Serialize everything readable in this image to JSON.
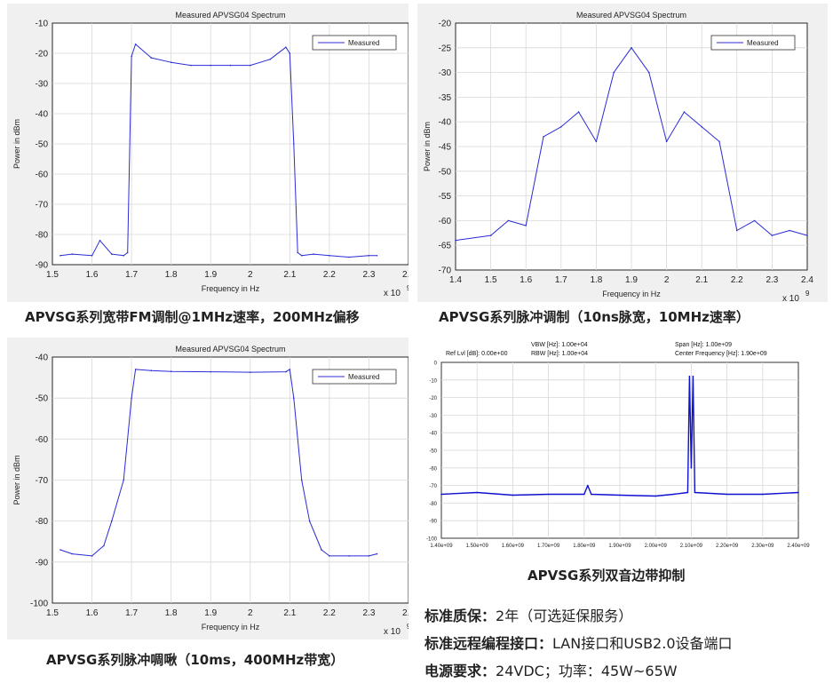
{
  "chart_data": [
    {
      "type": "line",
      "title": "Measured APVSG04 Spectrum",
      "xlabel": "Frequency in Hz",
      "ylabel": "Power in dBm",
      "x_exponent": "x 10",
      "x_exponent_power": "9",
      "xlim": [
        1.5,
        2.4
      ],
      "ylim": [
        -90,
        -10
      ],
      "x_ticks": [
        "1.5",
        "1.6",
        "1.7",
        "1.8",
        "1.9",
        "2",
        "2.1",
        "2.2",
        "2.3",
        "2.4"
      ],
      "y_ticks": [
        "-10",
        "-20",
        "-30",
        "-40",
        "-50",
        "-60",
        "-70",
        "-80",
        "-90"
      ],
      "grid": true,
      "legend_position": "top-right",
      "color": "#2b2bd6",
      "series": [
        {
          "name": "Measured",
          "x": [
            1.52,
            1.55,
            1.6,
            1.62,
            1.65,
            1.68,
            1.69,
            1.7,
            1.71,
            1.75,
            1.8,
            1.85,
            1.9,
            1.95,
            2.0,
            2.05,
            2.09,
            2.1,
            2.11,
            2.12,
            2.13,
            2.16,
            2.2,
            2.25,
            2.3,
            2.32
          ],
          "y": [
            -87,
            -86.5,
            -87,
            -82,
            -86.5,
            -87,
            -86,
            -21,
            -17,
            -21.5,
            -23,
            -24,
            -24,
            -24,
            -24,
            -22,
            -18,
            -20,
            -50,
            -86,
            -87,
            -86.5,
            -87,
            -87.5,
            -87,
            -87
          ]
        }
      ]
    },
    {
      "type": "line",
      "title": "Measured APVSG04 Spectrum",
      "xlabel": "Frequency in Hz",
      "ylabel": "Power in dBm",
      "x_exponent": "x 10",
      "x_exponent_power": "9",
      "xlim": [
        1.4,
        2.4
      ],
      "ylim": [
        -70,
        -20
      ],
      "x_ticks": [
        "1.4",
        "1.5",
        "1.6",
        "1.7",
        "1.8",
        "1.9",
        "2",
        "2.1",
        "2.2",
        "2.3",
        "2.4"
      ],
      "y_ticks": [
        "-20",
        "-25",
        "-30",
        "-35",
        "-40",
        "-45",
        "-50",
        "-55",
        "-60",
        "-65",
        "-70"
      ],
      "grid": true,
      "legend_position": "top-right",
      "color": "#2b2bd6",
      "series": [
        {
          "name": "Measured",
          "x": [
            1.4,
            1.5,
            1.55,
            1.6,
            1.65,
            1.7,
            1.75,
            1.8,
            1.85,
            1.9,
            1.95,
            2.0,
            2.05,
            2.1,
            2.15,
            2.2,
            2.25,
            2.3,
            2.35,
            2.4
          ],
          "y": [
            -64,
            -63,
            -60,
            -61,
            -43,
            -41,
            -38,
            -44,
            -30,
            -25,
            -30,
            -44,
            -38,
            -41,
            -44,
            -62,
            -60,
            -63,
            -62,
            -63
          ]
        }
      ]
    },
    {
      "type": "line",
      "title": "Measured APVSG04 Spectrum",
      "xlabel": "Frequency in Hz",
      "ylabel": "Power in dBm",
      "x_exponent": "x 10",
      "x_exponent_power": "9",
      "xlim": [
        1.5,
        2.4
      ],
      "ylim": [
        -100,
        -40
      ],
      "x_ticks": [
        "1.5",
        "1.6",
        "1.7",
        "1.8",
        "1.9",
        "2",
        "2.1",
        "2.2",
        "2.3",
        "2.4"
      ],
      "y_ticks": [
        "-40",
        "-50",
        "-60",
        "-70",
        "-80",
        "-90",
        "-100"
      ],
      "grid": true,
      "legend_position": "top-right",
      "color": "#2b2bd6",
      "series": [
        {
          "name": "Measured",
          "x": [
            1.52,
            1.55,
            1.6,
            1.63,
            1.65,
            1.68,
            1.7,
            1.71,
            1.75,
            1.8,
            1.9,
            2.0,
            2.09,
            2.1,
            2.11,
            2.13,
            2.15,
            2.18,
            2.2,
            2.25,
            2.3,
            2.32
          ],
          "y": [
            -87,
            -88,
            -88.5,
            -86,
            -80,
            -70,
            -50,
            -43,
            -43.3,
            -43.5,
            -43.6,
            -43.7,
            -43.6,
            -43,
            -50,
            -70,
            -80,
            -87,
            -88.5,
            -88.5,
            -88.5,
            -88
          ]
        }
      ]
    },
    {
      "type": "line",
      "header": {
        "ref_lvl": "Ref Lvl [dB]: 0.00e+00",
        "vbw": "VBW [Hz]: 1.00e+04",
        "rbw": "RBW [Hz]: 1.00e+04",
        "span": "Span [Hz]: 1.00e+09",
        "center": "Center Frequency [Hz]: 1.90e+09"
      },
      "xlim": [
        1.4,
        2.4
      ],
      "ylim": [
        -100,
        0
      ],
      "x_ticks": [
        "1.40e+09",
        "1.50e+09",
        "1.60e+09",
        "1.70e+09",
        "1.80e+09",
        "1.90e+09",
        "2.00e+09",
        "2.10e+09",
        "2.20e+09",
        "2.30e+09",
        "2.40e+09"
      ],
      "y_ticks": [
        "0",
        "-10",
        "-20",
        "-30",
        "-40",
        "-50",
        "-60",
        "-70",
        "-80",
        "-90",
        "-100"
      ],
      "grid": true,
      "color": "#1010d0",
      "series": [
        {
          "x": [
            1.4,
            1.5,
            1.6,
            1.7,
            1.8,
            1.81,
            1.82,
            1.9,
            2.0,
            2.05,
            2.09,
            2.095,
            2.1,
            2.105,
            2.11,
            2.2,
            2.3,
            2.4
          ],
          "y": [
            -75,
            -74,
            -75.5,
            -75,
            -75,
            -70,
            -75,
            -75.5,
            -76,
            -75,
            -74,
            -8,
            -60,
            -8,
            -74,
            -75,
            -75,
            -74
          ]
        }
      ]
    }
  ],
  "captions": {
    "c1": "APVSG系列宽带FM调制@1MHz速率，200MHz偏移",
    "c2": "APVSG系列脉冲调制（10ns脉宽，10MHz速率）",
    "c3": "APVSG系列脉冲啁啾（10ms，400MHz带宽）",
    "c4": "APVSG系列双音边带抑制"
  },
  "specs": [
    {
      "label": "标准质保：",
      "value": "2年（可选延保服务）"
    },
    {
      "label": "标准远程编程接口：",
      "value": "LAN接口和USB2.0设备端口"
    },
    {
      "label": "电源要求：",
      "value": "24VDC；功率：45W~65W"
    }
  ]
}
